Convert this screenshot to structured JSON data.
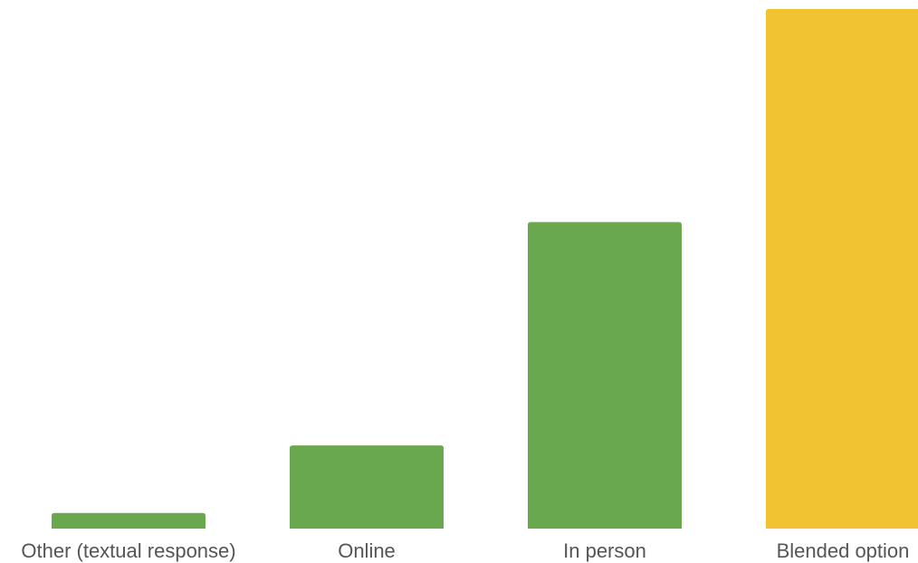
{
  "chart_data": {
    "type": "bar",
    "title": "",
    "xlabel": "",
    "ylabel": "",
    "categories": [
      "Other (textual response)",
      "Online",
      "In person",
      "Blended option"
    ],
    "values": [
      3,
      16,
      59,
      100
    ],
    "ylim": [
      0,
      100
    ],
    "grid": false,
    "legend": "none",
    "colors": [
      "#6aa84f",
      "#6aa84f",
      "#6aa84f",
      "#f1c232"
    ],
    "label_color": "#555555",
    "background": "#ffffff"
  }
}
